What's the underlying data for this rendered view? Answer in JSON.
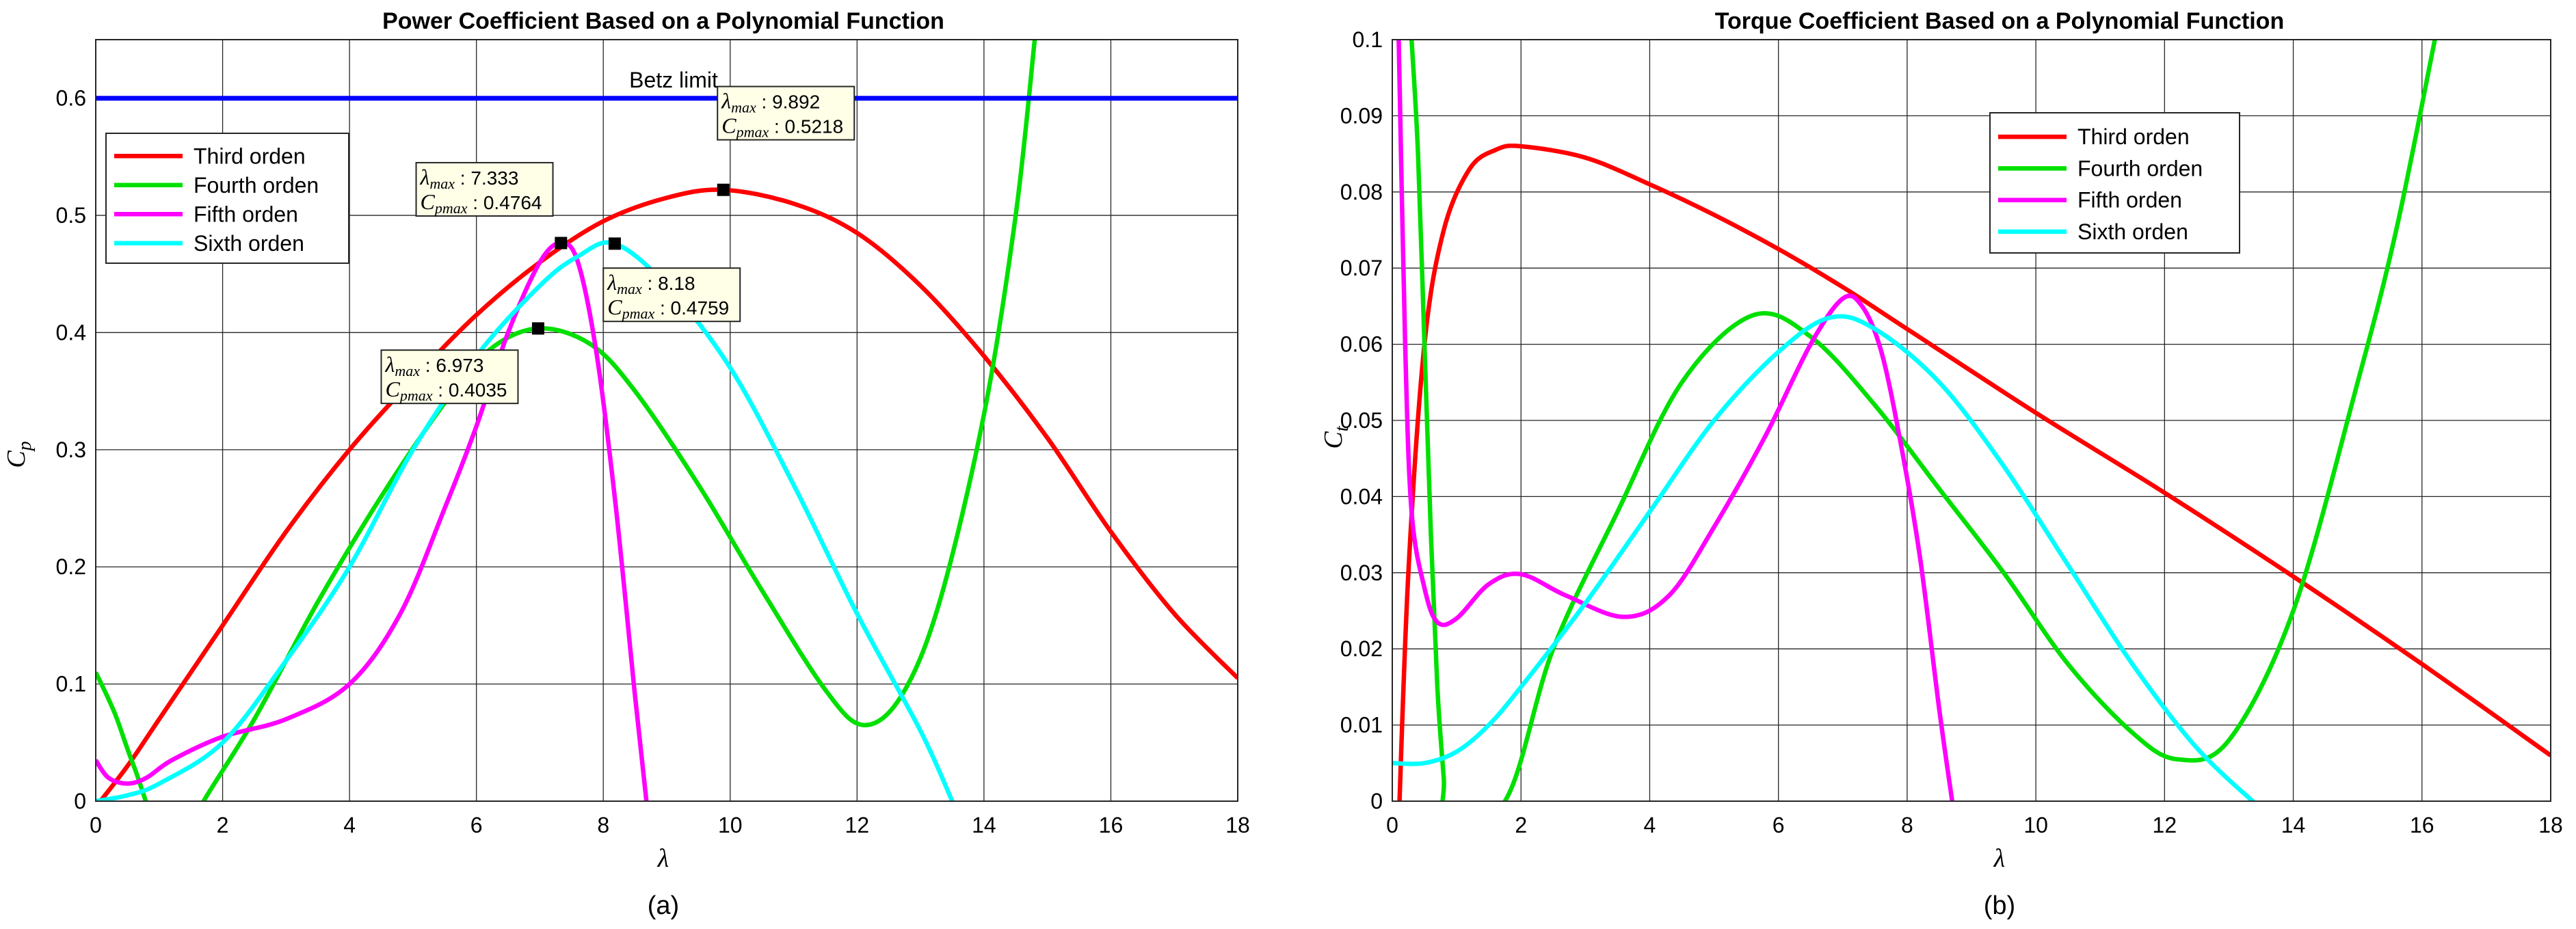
{
  "chart_data": [
    {
      "type": "line",
      "panel_caption": "(a)",
      "title": "Power Coefficient Based on a Polynomial Function",
      "xlabel": "λ",
      "ylabel": "Cp",
      "xlim": [
        0,
        18
      ],
      "ylim": [
        0,
        0.65
      ],
      "xticks": [
        0,
        2,
        4,
        6,
        8,
        10,
        12,
        14,
        16,
        18
      ],
      "yticks": [
        0,
        0.1,
        0.2,
        0.3,
        0.4,
        0.5,
        0.6
      ],
      "xtick_labels": [
        "0",
        "2",
        "4",
        "6",
        "8",
        "10",
        "12",
        "14",
        "16",
        "18"
      ],
      "ytick_labels": [
        "0",
        "0.1",
        "0.2",
        "0.3",
        "0.4",
        "0.5",
        "0.6"
      ],
      "grid": true,
      "legend_position": "top-left",
      "series": [
        {
          "name": "Third orden",
          "color": "#ff0000",
          "x": [
            0,
            0.5,
            1,
            2,
            3,
            4,
            5,
            6,
            7,
            8,
            9,
            9.892,
            11,
            12,
            13,
            14,
            15,
            16,
            17,
            18
          ],
          "y": [
            -0.005,
            0.03,
            0.07,
            0.15,
            0.23,
            0.3,
            0.36,
            0.415,
            0.46,
            0.495,
            0.515,
            0.5218,
            0.51,
            0.485,
            0.44,
            0.38,
            0.31,
            0.23,
            0.16,
            0.105
          ]
        },
        {
          "name": "Fourth orden",
          "color": "#00e000",
          "x": [
            0,
            0.3,
            0.6,
            1.2,
            1.7,
            2.5,
            3.5,
            4.5,
            5.5,
            6.2,
            6.973,
            7.8,
            8.5,
            9.5,
            10.5,
            11.5,
            12.1,
            12.7,
            13.3,
            14,
            14.5,
            14.8
          ],
          "y": [
            0.11,
            0.075,
            0.03,
            -0.05,
            0.0,
            0.07,
            0.17,
            0.26,
            0.34,
            0.385,
            0.4035,
            0.39,
            0.35,
            0.27,
            0.18,
            0.095,
            0.065,
            0.09,
            0.17,
            0.33,
            0.5,
            0.65
          ]
        },
        {
          "name": "Fifth orden",
          "color": "#ff00ff",
          "x": [
            0,
            0.2,
            0.5,
            0.8,
            1.2,
            2,
            3,
            4,
            4.8,
            5.5,
            6,
            6.5,
            7,
            7.333,
            7.6,
            7.9,
            8.2,
            8.5,
            8.7
          ],
          "y": [
            0.035,
            0.02,
            0.015,
            0.02,
            0.035,
            0.055,
            0.07,
            0.1,
            0.16,
            0.25,
            0.32,
            0.4,
            0.46,
            0.4764,
            0.46,
            0.38,
            0.25,
            0.09,
            -0.01
          ]
        },
        {
          "name": "Sixth orden",
          "color": "#00ffff",
          "x": [
            0,
            0.5,
            1,
            2,
            3,
            4,
            5,
            6,
            7,
            7.6,
            8.18,
            9,
            10,
            11,
            12,
            13,
            13.5
          ],
          "y": [
            0.0,
            0.005,
            0.015,
            0.05,
            0.12,
            0.2,
            0.3,
            0.38,
            0.44,
            0.465,
            0.4759,
            0.44,
            0.37,
            0.27,
            0.16,
            0.06,
            0.0
          ]
        },
        {
          "name": "Betz limit",
          "color": "#0000ff",
          "x": [
            0,
            18
          ],
          "y": [
            0.6,
            0.6
          ]
        }
      ],
      "betz_label": "Betz limit",
      "annotations": [
        {
          "lambda_label": "λmax",
          "lambda": "7.333",
          "cp_label": "Cpmax",
          "cp": "0.4764",
          "point": [
            7.333,
            0.4764
          ],
          "anchor": [
            5.05,
            0.545
          ]
        },
        {
          "lambda_label": "λmax",
          "lambda": "9.892",
          "cp_label": "Cpmax",
          "cp": "0.5218",
          "point": [
            9.892,
            0.5218
          ],
          "anchor": [
            9.8,
            0.61
          ]
        },
        {
          "lambda_label": "λmax",
          "lambda": "8.18",
          "cp_label": "Cpmax",
          "cp": "0.4759",
          "point": [
            8.18,
            0.4759
          ],
          "anchor": [
            8.0,
            0.455
          ]
        },
        {
          "lambda_label": "λmax",
          "lambda": "6.973",
          "cp_label": "Cpmax",
          "cp": "0.4035",
          "point": [
            6.973,
            0.4035
          ],
          "anchor": [
            4.5,
            0.385
          ]
        }
      ]
    },
    {
      "type": "line",
      "panel_caption": "(b)",
      "title": "Torque Coefficient Based on a Polynomial Function",
      "xlabel": "λ",
      "ylabel": "Ct",
      "xlim": [
        0,
        18
      ],
      "ylim": [
        0,
        0.1
      ],
      "xticks": [
        0,
        2,
        4,
        6,
        8,
        10,
        12,
        14,
        16,
        18
      ],
      "yticks": [
        0,
        0.01,
        0.02,
        0.03,
        0.04,
        0.05,
        0.06,
        0.07,
        0.08,
        0.09,
        0.1
      ],
      "xtick_labels": [
        "0",
        "2",
        "4",
        "6",
        "8",
        "10",
        "12",
        "14",
        "16",
        "18"
      ],
      "ytick_labels": [
        "0",
        "0.01",
        "0.02",
        "0.03",
        "0.04",
        "0.05",
        "0.06",
        "0.07",
        "0.08",
        "0.09",
        "0.1"
      ],
      "grid": true,
      "legend_position": "top-center",
      "series": [
        {
          "name": "Third orden",
          "color": "#ff0000",
          "x": [
            0.1,
            0.25,
            0.5,
            0.8,
            1.2,
            1.6,
            2,
            3,
            4,
            5,
            6,
            7,
            8,
            10,
            12,
            14,
            16,
            18
          ],
          "y": [
            -0.003,
            0.03,
            0.06,
            0.075,
            0.083,
            0.0855,
            0.086,
            0.0845,
            0.081,
            0.077,
            0.0725,
            0.0675,
            0.062,
            0.051,
            0.0405,
            0.0295,
            0.018,
            0.006
          ]
        },
        {
          "name": "Fourth orden",
          "color": "#00e000",
          "x": [
            0.3,
            0.4,
            0.5,
            0.6,
            0.7,
            0.8,
            0.85,
            1.75,
            2.5,
            3.5,
            4.5,
            5.6,
            6.5,
            7.5,
            8.5,
            9.5,
            10.5,
            11.5,
            12.2,
            13,
            14,
            15,
            15.6,
            16.2
          ],
          "y": [
            0.1,
            0.085,
            0.06,
            0.035,
            0.015,
            0.003,
            -0.002,
            0.0,
            0.02,
            0.038,
            0.055,
            0.0638,
            0.061,
            0.052,
            0.041,
            0.03,
            0.018,
            0.009,
            0.0055,
            0.008,
            0.025,
            0.055,
            0.075,
            0.1
          ]
        },
        {
          "name": "Fifth orden",
          "color": "#ff00ff",
          "x": [
            0.1,
            0.2,
            0.3,
            0.5,
            0.7,
            1,
            1.5,
            2,
            2.7,
            3.6,
            4.3,
            5,
            5.8,
            6.5,
            7,
            7.3,
            7.6,
            7.9,
            8.2,
            8.5,
            8.7
          ],
          "y": [
            0.1,
            0.06,
            0.038,
            0.028,
            0.0235,
            0.024,
            0.0285,
            0.0298,
            0.027,
            0.0242,
            0.027,
            0.036,
            0.048,
            0.06,
            0.066,
            0.065,
            0.059,
            0.047,
            0.032,
            0.012,
            0.0
          ]
        },
        {
          "name": "Sixth orden",
          "color": "#00ffff",
          "x": [
            0,
            0.5,
            1,
            1.5,
            2,
            3,
            4,
            5,
            6,
            6.8,
            7.5,
            8.5,
            9.5,
            10.5,
            11.5,
            12.5,
            13.5
          ],
          "y": [
            0.005,
            0.005,
            0.0065,
            0.01,
            0.015,
            0.026,
            0.038,
            0.05,
            0.059,
            0.0635,
            0.062,
            0.055,
            0.044,
            0.031,
            0.018,
            0.007,
            -0.001
          ]
        }
      ]
    }
  ]
}
